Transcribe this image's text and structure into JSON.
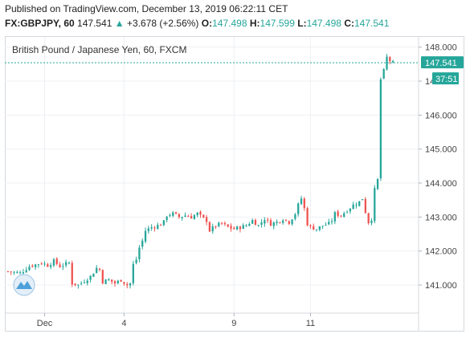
{
  "header": {
    "published": "Published on TradingView.com, December 13, 2019 06:22:11 CET",
    "symbol": "FX:GBPJPY, 60",
    "last": "147.541",
    "change_arrow": "▲",
    "change": "+3.678 (+2.56%)",
    "o_label": "O:",
    "o_value": "147.498",
    "h_label": "H:",
    "h_value": "147.599",
    "l_label": "L:",
    "l_value": "147.498",
    "c_label": "C:",
    "c_value": "147.541"
  },
  "colors": {
    "up": "#26a69a",
    "down": "#ef5350",
    "price_tag": "#26a69a",
    "countdown_tag": "#26a69a",
    "logo": "#4da0d8"
  },
  "logo_icon": "tradingview-logo-icon",
  "chart_data": {
    "type": "candlestick",
    "title": "British Pound / Japanese Yen, 60, FXCM",
    "ylim": [
      140.22,
      148.3
    ],
    "y_ticks": [
      141,
      142,
      143,
      144,
      145,
      146,
      147,
      148
    ],
    "y_tick_labels": [
      "141.000",
      "142.000",
      "143.000",
      "144.000",
      "145.000",
      "146.000",
      "147.000",
      "148.000"
    ],
    "x_tick_labels": [
      "Dec",
      "4",
      "9",
      "11"
    ],
    "x_tick_bars": [
      12,
      38,
      74,
      99
    ],
    "last_price": 147.541,
    "last_price_label": "147.541",
    "countdown_label": "37:51",
    "grid": true,
    "close_path": [
      [
        0,
        141.4
      ],
      [
        4,
        141.35
      ],
      [
        7,
        141.55
      ],
      [
        9,
        141.6
      ],
      [
        11,
        141.65
      ],
      [
        13,
        141.58
      ],
      [
        15,
        141.7
      ],
      [
        17,
        141.55
      ],
      [
        19,
        141.62
      ],
      [
        20,
        141.65
      ],
      [
        21,
        141.05
      ],
      [
        23,
        141.0
      ],
      [
        25,
        141.12
      ],
      [
        27,
        141.25
      ],
      [
        29,
        141.5
      ],
      [
        30,
        141.45
      ],
      [
        31,
        141.1
      ],
      [
        33,
        141.15
      ],
      [
        35,
        141.05
      ],
      [
        37,
        141.15
      ],
      [
        39,
        141.0
      ],
      [
        40,
        141.05
      ],
      [
        41,
        141.6
      ],
      [
        42,
        141.75
      ],
      [
        43,
        142.1
      ],
      [
        44,
        142.3
      ],
      [
        45,
        142.6
      ],
      [
        47,
        142.7
      ],
      [
        49,
        142.75
      ],
      [
        50,
        142.8
      ],
      [
        51,
        142.85
      ],
      [
        52,
        143.05
      ],
      [
        54,
        143.1
      ],
      [
        56,
        143.0
      ],
      [
        58,
        143.05
      ],
      [
        60,
        143.0
      ],
      [
        62,
        143.1
      ],
      [
        64,
        142.95
      ],
      [
        65,
        142.9
      ],
      [
        66,
        142.6
      ],
      [
        68,
        142.75
      ],
      [
        70,
        142.8
      ],
      [
        72,
        142.7
      ],
      [
        74,
        142.65
      ],
      [
        76,
        142.7
      ],
      [
        78,
        142.75
      ],
      [
        80,
        142.9
      ],
      [
        82,
        142.75
      ],
      [
        84,
        142.95
      ],
      [
        86,
        142.8
      ],
      [
        88,
        142.85
      ],
      [
        90,
        142.95
      ],
      [
        92,
        142.85
      ],
      [
        94,
        143.1
      ],
      [
        95,
        143.35
      ],
      [
        96,
        143.55
      ],
      [
        97,
        143.25
      ],
      [
        98,
        142.8
      ],
      [
        99,
        142.7
      ],
      [
        101,
        142.65
      ],
      [
        103,
        142.75
      ],
      [
        105,
        142.8
      ],
      [
        106,
        142.9
      ],
      [
        107,
        143.1
      ],
      [
        109,
        143.05
      ],
      [
        111,
        143.2
      ],
      [
        113,
        143.35
      ],
      [
        115,
        143.45
      ],
      [
        116,
        143.55
      ],
      [
        117,
        143.15
      ],
      [
        118,
        142.85
      ],
      [
        119,
        142.95
      ],
      [
        120,
        143.8
      ],
      [
        121,
        144.1
      ],
      [
        122,
        147.05
      ],
      [
        123,
        147.3
      ],
      [
        124,
        147.7
      ],
      [
        125,
        147.6
      ],
      [
        126,
        147.54
      ]
    ]
  }
}
